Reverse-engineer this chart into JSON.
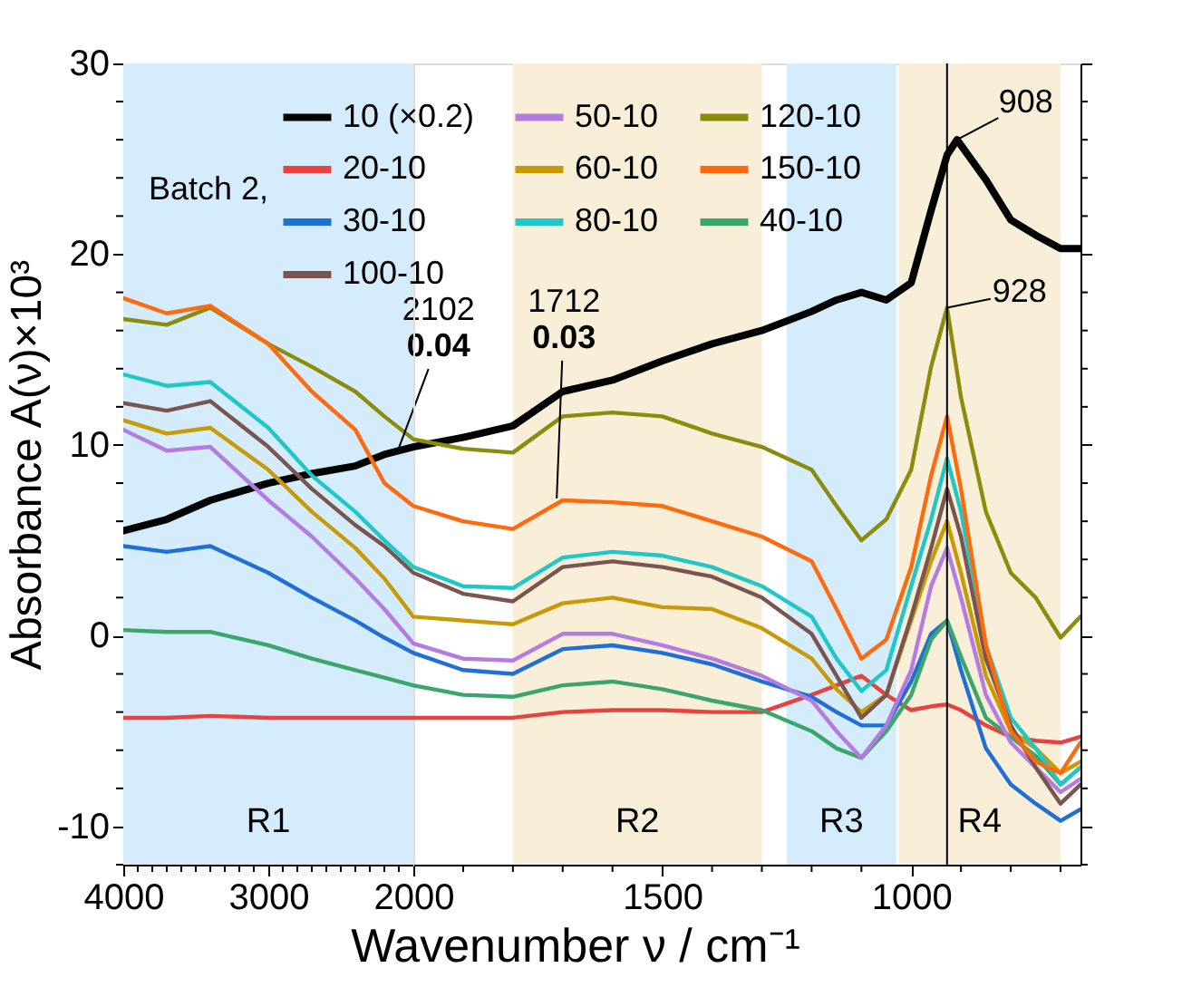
{
  "chart_data": [
    {
      "type": "line",
      "ylabel": "Absorbance A(ν)×10³",
      "xlabel": "Wavenumber ν / cm⁻¹",
      "grid": false,
      "x": [
        4000,
        3700,
        3400,
        3000,
        2700,
        2400,
        2200,
        2000
      ],
      "xlim": [
        4000,
        2000
      ],
      "xticks": [
        4000,
        {
          "value": 3900,
          "label": null
        },
        {
          "value": 3800,
          "label": null
        },
        {
          "value": 3700,
          "label": null
        },
        {
          "value": 3600,
          "label": null
        },
        {
          "value": 3500,
          "label": null
        },
        {
          "value": 3400,
          "label": null
        },
        {
          "value": 3300,
          "label": null
        },
        {
          "value": 3200,
          "label": null
        },
        {
          "value": 3100,
          "label": null
        },
        3000,
        {
          "value": 2900,
          "label": null
        },
        {
          "value": 2800,
          "label": null
        },
        {
          "value": 2700,
          "label": null
        },
        {
          "value": 2600,
          "label": null
        },
        {
          "value": 2500,
          "label": null
        },
        {
          "value": 2400,
          "label": null
        },
        {
          "value": 2300,
          "label": null
        },
        {
          "value": 2200,
          "label": null
        },
        {
          "value": 2100,
          "label": null
        },
        2000
      ],
      "ylim": [
        -12,
        30
      ],
      "yticks": [
        {
          "value": -12,
          "label": null
        },
        -10,
        {
          "value": -8,
          "label": null
        },
        {
          "value": -6,
          "label": null
        },
        {
          "value": -4,
          "label": null
        },
        {
          "value": -2,
          "label": null
        },
        0,
        {
          "value": 2,
          "label": null
        },
        {
          "value": 4,
          "label": null
        },
        {
          "value": 6,
          "label": null
        },
        {
          "value": 8,
          "label": null
        },
        10,
        {
          "value": 12,
          "label": null
        },
        {
          "value": 14,
          "label": null
        },
        {
          "value": 16,
          "label": null
        },
        {
          "value": 18,
          "label": null
        },
        20,
        {
          "value": 22,
          "label": null
        },
        {
          "value": 24,
          "label": null
        },
        {
          "value": 26,
          "label": null
        },
        {
          "value": 28,
          "label": null
        },
        30
      ],
      "bands": [
        {
          "axis": "x",
          "from": 4000,
          "to": 2000,
          "label": "R1",
          "color": "#d4ecfb"
        }
      ],
      "annotations": [
        {
          "text": "2102",
          "x": 2102,
          "y": 9.8
        },
        {
          "text": "0.04",
          "x": 2102,
          "y": 9.8
        }
      ],
      "series": [
        {
          "color": "#000000",
          "values": [
            5.5,
            6.1,
            7.1,
            8.0,
            8.5,
            8.9,
            9.5,
            9.9
          ]
        },
        {
          "color": "#e8413f",
          "values": [
            -4.3,
            -4.3,
            -4.2,
            -4.3,
            -4.3,
            -4.3,
            -4.3,
            -4.3
          ]
        },
        {
          "color": "#1f6fd6",
          "values": [
            4.7,
            4.4,
            4.7,
            3.3,
            2.0,
            0.8,
            -0.1,
            -0.9
          ]
        },
        {
          "color": "#3aa66b",
          "values": [
            0.3,
            0.2,
            0.2,
            -0.5,
            -1.2,
            -1.8,
            -2.2,
            -2.6
          ]
        },
        {
          "color": "#b57be0",
          "values": [
            10.8,
            9.7,
            9.9,
            7.1,
            5.2,
            3.0,
            1.4,
            -0.4
          ]
        },
        {
          "color": "#c99a08",
          "values": [
            11.3,
            10.6,
            10.9,
            8.7,
            6.5,
            4.6,
            3.0,
            1.0
          ]
        },
        {
          "color": "#1fc8c8",
          "values": [
            13.7,
            13.1,
            13.3,
            10.9,
            8.4,
            6.5,
            5.0,
            3.6
          ]
        },
        {
          "color": "#7a5550",
          "values": [
            12.2,
            11.8,
            12.3,
            9.9,
            7.7,
            5.8,
            4.7,
            3.3
          ]
        },
        {
          "color": "#8b8b0c",
          "values": [
            16.6,
            16.3,
            17.2,
            15.3,
            14.1,
            12.8,
            11.5,
            10.3
          ]
        },
        {
          "color": "#ff6a0f",
          "values": [
            17.7,
            16.9,
            17.3,
            15.3,
            12.8,
            10.8,
            8.0,
            6.8
          ]
        }
      ]
    },
    {
      "type": "line",
      "legend_title": "Batch 2,",
      "legend": "top left",
      "grid": false,
      "tick_labels": "x",
      "x": [
        2000,
        1900,
        1800,
        1700,
        1600,
        1500,
        1400,
        1300,
        1200,
        1150,
        1100,
        1050,
        1000,
        960,
        928,
        900,
        850,
        800,
        750,
        700,
        660
      ],
      "xlim": [
        2000,
        660
      ],
      "xticks": [
        {
          "value": 1900,
          "label": null
        },
        {
          "value": 1800,
          "label": null
        },
        {
          "value": 1700,
          "label": null
        },
        {
          "value": 1600,
          "label": null
        },
        1500,
        {
          "value": 1400,
          "label": null
        },
        {
          "value": 1300,
          "label": null
        },
        {
          "value": 1200,
          "label": null
        },
        {
          "value": 1100,
          "label": null
        },
        1000,
        {
          "value": 900,
          "label": null
        },
        {
          "value": 800,
          "label": null
        },
        {
          "value": 700,
          "label": null
        }
      ],
      "ylim": [
        -12,
        30
      ],
      "yticks": [
        {
          "value": -12,
          "label": null
        },
        -10,
        {
          "value": -8,
          "label": null
        },
        {
          "value": -6,
          "label": null
        },
        {
          "value": -4,
          "label": null
        },
        {
          "value": -2,
          "label": null
        },
        0,
        {
          "value": 2,
          "label": null
        },
        {
          "value": 4,
          "label": null
        },
        {
          "value": 6,
          "label": null
        },
        {
          "value": 8,
          "label": null
        },
        10,
        {
          "value": 12,
          "label": null
        },
        {
          "value": 14,
          "label": null
        },
        {
          "value": 16,
          "label": null
        },
        {
          "value": 18,
          "label": null
        },
        20,
        {
          "value": 22,
          "label": null
        },
        {
          "value": 24,
          "label": null
        },
        {
          "value": 26,
          "label": null
        },
        {
          "value": 28,
          "label": null
        },
        30
      ],
      "bands": [
        {
          "axis": "x",
          "from": 1800,
          "to": 1300,
          "label": "R2",
          "color": "#f9efd9"
        },
        {
          "axis": "x",
          "from": 1250,
          "to": 1030,
          "label": "R3",
          "color": "#d4ecfb"
        },
        {
          "axis": "x",
          "from": 1025,
          "to": 700,
          "label": "R4",
          "color": "#f9efd9"
        }
      ],
      "ref_lines": [
        {
          "axis": "x",
          "value": 928,
          "color": "#000000"
        }
      ],
      "annotations": [
        {
          "text": "1712",
          "x": 1712,
          "y": 7.2
        },
        {
          "text": "0.03",
          "x": 1712,
          "y": 7.2
        },
        {
          "text": "908",
          "x": 908,
          "y": 26.0
        },
        {
          "text": "928",
          "x": 928,
          "y": 17.2
        }
      ],
      "series": [
        {
          "name": "10 (×0.2)",
          "color": "#000000",
          "x": [
            2000,
            1900,
            1800,
            1700,
            1600,
            1500,
            1400,
            1300,
            1200,
            1150,
            1100,
            1050,
            1000,
            960,
            928,
            908,
            850,
            800,
            750,
            700,
            660
          ],
          "values": [
            9.9,
            10.4,
            11.0,
            12.8,
            13.4,
            14.4,
            15.3,
            16.0,
            17.0,
            17.6,
            18.0,
            17.6,
            18.5,
            22.3,
            25.2,
            26.0,
            23.9,
            21.8,
            21.0,
            20.3,
            20.3
          ]
        },
        {
          "name": "20-10",
          "color": "#e8413f",
          "values": [
            -4.3,
            -4.3,
            -4.3,
            -4.0,
            -3.9,
            -3.9,
            -4.0,
            -4.0,
            -3.1,
            -2.6,
            -2.1,
            -3.1,
            -3.9,
            -3.7,
            -3.6,
            -3.9,
            -4.7,
            -5.3,
            -5.5,
            -5.6,
            -5.3
          ]
        },
        {
          "name": "30-10",
          "color": "#1f6fd6",
          "values": [
            -0.9,
            -1.8,
            -2.0,
            -0.7,
            -0.5,
            -0.9,
            -1.5,
            -2.4,
            -3.2,
            -4.0,
            -4.7,
            -4.7,
            -2.4,
            0.1,
            0.8,
            -1.8,
            -5.9,
            -7.8,
            -8.8,
            -9.7,
            -9.1
          ]
        },
        {
          "name": "40-10",
          "color": "#3aa66b",
          "values": [
            -2.6,
            -3.1,
            -3.2,
            -2.6,
            -2.4,
            -2.8,
            -3.4,
            -3.9,
            -5.0,
            -5.9,
            -6.4,
            -5.0,
            -3.1,
            -0.2,
            0.8,
            -1.1,
            -4.3,
            -5.3,
            -6.3,
            -7.8,
            -6.9
          ]
        },
        {
          "name": "50-10",
          "color": "#b57be0",
          "values": [
            -0.4,
            -1.2,
            -1.3,
            0.1,
            0.1,
            -0.5,
            -1.2,
            -2.1,
            -3.4,
            -5.0,
            -6.4,
            -4.7,
            -1.8,
            2.6,
            4.6,
            2.0,
            -3.1,
            -5.6,
            -6.9,
            -8.2,
            -7.5
          ]
        },
        {
          "name": "60-10",
          "color": "#c99a08",
          "values": [
            1.0,
            0.8,
            0.6,
            1.7,
            2.0,
            1.5,
            1.4,
            0.4,
            -1.2,
            -2.8,
            -4.0,
            -3.1,
            0.8,
            3.9,
            6.0,
            3.3,
            -2.1,
            -5.0,
            -5.9,
            -7.2,
            -6.6
          ]
        },
        {
          "name": "80-10",
          "color": "#1fc8c8",
          "values": [
            3.6,
            2.6,
            2.5,
            4.1,
            4.4,
            4.2,
            3.6,
            2.6,
            1.0,
            -1.2,
            -2.9,
            -1.8,
            2.6,
            6.1,
            9.3,
            6.5,
            -0.5,
            -4.3,
            -5.9,
            -7.8,
            -6.9
          ]
        },
        {
          "name": "100-10",
          "color": "#7a5550",
          "values": [
            3.3,
            2.2,
            1.8,
            3.6,
            3.9,
            3.6,
            3.1,
            2.0,
            0.1,
            -2.1,
            -4.3,
            -3.1,
            1.0,
            4.6,
            7.7,
            5.2,
            -1.2,
            -4.7,
            -6.9,
            -8.8,
            -7.8
          ]
        },
        {
          "name": "120-10",
          "color": "#8b8b0c",
          "values": [
            10.3,
            9.8,
            9.6,
            11.5,
            11.7,
            11.5,
            10.6,
            9.9,
            8.7,
            6.8,
            5.0,
            6.1,
            8.7,
            14.1,
            17.2,
            12.5,
            6.5,
            3.3,
            2.0,
            -0.1,
            1.0
          ]
        },
        {
          "name": "150-10",
          "color": "#ff6a0f",
          "values": [
            6.8,
            6.0,
            5.6,
            7.1,
            7.0,
            6.8,
            6.0,
            5.2,
            3.9,
            1.4,
            -1.2,
            -0.2,
            3.6,
            8.4,
            11.5,
            7.7,
            -0.5,
            -5.0,
            -6.6,
            -7.2,
            -5.6
          ]
        }
      ]
    }
  ]
}
